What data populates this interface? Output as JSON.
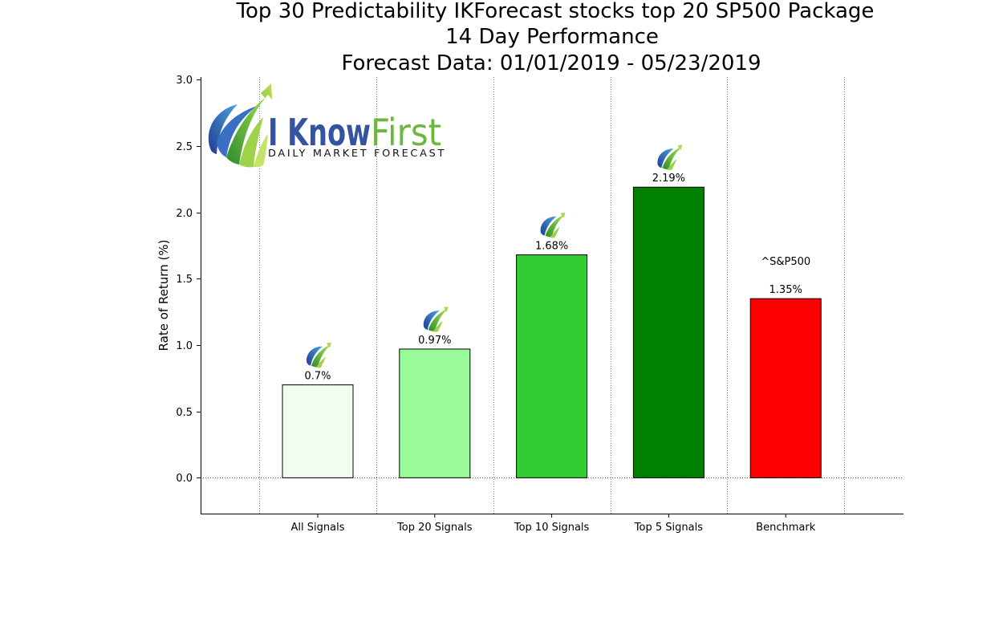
{
  "title_lines": [
    "Top 30 Predictability IKForecast stocks top 20 SP500 Package",
    "14 Day Performance",
    "Forecast Data: 01/01/2019 - 05/23/2019"
  ],
  "logo": {
    "word_dark": "I Know",
    "word_light": "First",
    "tagline": "Daily Market Forecast"
  },
  "colors": {
    "logo_blue": "#3553a0",
    "logo_green": "#6cb83f"
  },
  "chart_data": {
    "type": "bar",
    "categories": [
      "All Signals",
      "Top 20 Signals",
      "Top 10 Signals",
      "Top 5 Signals",
      "Benchmark"
    ],
    "values": [
      0.7,
      0.97,
      1.68,
      2.19,
      1.35
    ],
    "value_labels": [
      "0.7%",
      "0.97%",
      "1.68%",
      "2.19%",
      "1.35%"
    ],
    "bar_colors": [
      "#f0fff0",
      "#98fb98",
      "#32cd32",
      "#008000",
      "#ff0000"
    ],
    "signal_icon": [
      true,
      true,
      true,
      true,
      false
    ],
    "benchmark_annotation": "^S&P500",
    "ylabel": "Rate of Return (%)",
    "xlabel": "",
    "ylim": [
      -0.27,
      3.02
    ],
    "yticks": [
      "0.0",
      "0.5",
      "1.0",
      "1.5",
      "2.0",
      "2.5",
      "3.0"
    ],
    "grid": "vertical dotted",
    "legend": "none"
  }
}
